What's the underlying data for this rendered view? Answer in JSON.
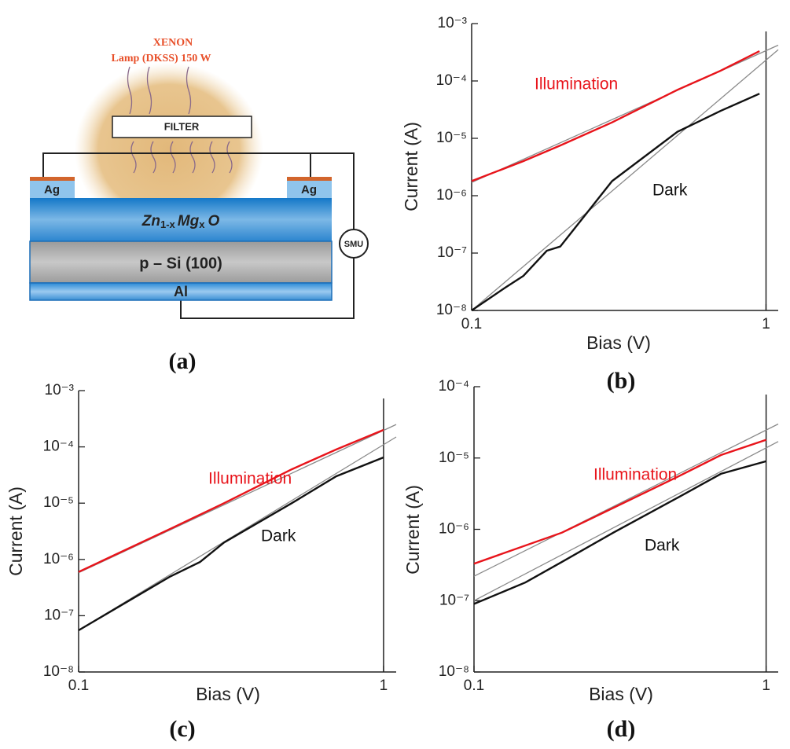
{
  "diagram": {
    "lamp": [
      "XENON",
      "Lamp (DKSS) 150 W"
    ],
    "filter": "FILTER",
    "contacts": [
      "Ag",
      "Ag"
    ],
    "layer": {
      "base": "Zn",
      "sub1": "1-x",
      "mid": "Mg",
      "sub2": "x",
      "end": "O"
    },
    "substrate": "p – Si (100)",
    "back": "Al",
    "meter": "SMU",
    "panel": "(a)"
  },
  "chart_data": [
    {
      "type": "line",
      "panel": "(b)",
      "log_x": true,
      "log_y": true,
      "x_label": "Bias (V)",
      "y_label": "Current (A)",
      "xlim": [
        0.1,
        1.1
      ],
      "ylim": [
        1e-08,
        0.001
      ],
      "xticks": [
        0.1,
        1
      ],
      "yticks": [
        {
          "value": 1e-08,
          "label": "10⁻⁸"
        },
        {
          "value": 1e-07,
          "label": "10⁻⁷"
        },
        {
          "value": 1e-06,
          "label": "10⁻⁶"
        },
        {
          "value": 1e-05,
          "label": "10⁻⁵"
        },
        {
          "value": 0.0001,
          "label": "10⁻⁴"
        },
        {
          "value": 0.001,
          "label": "10⁻³"
        }
      ],
      "series": [
        {
          "x": [
            0.1,
            1.1
          ],
          "values": [
            1.7e-06,
            0.00042
          ],
          "color": "#8a8a8a"
        },
        {
          "x": [
            0.1,
            1.1
          ],
          "values": [
            1e-08,
            0.00035
          ],
          "color": "#8a8a8a"
        },
        {
          "name": "Illumination",
          "color": "#e8141b",
          "x": [
            0.1,
            0.15,
            0.2,
            0.3,
            0.5,
            0.7,
            0.95
          ],
          "values": [
            1.8e-06,
            4e-06,
            7.5e-06,
            1.9e-05,
            7e-05,
            0.00015,
            0.00033
          ]
        },
        {
          "name": "Dark",
          "color": "#111111",
          "x": [
            0.1,
            0.13,
            0.15,
            0.18,
            0.2,
            0.3,
            0.5,
            0.7,
            0.95
          ],
          "values": [
            1e-08,
            2.5e-08,
            4e-08,
            1.1e-07,
            1.3e-07,
            1.8e-06,
            1.3e-05,
            3e-05,
            6e-05
          ]
        }
      ]
    },
    {
      "type": "line",
      "panel": "(c)",
      "log_x": true,
      "log_y": true,
      "x_label": "Bias (V)",
      "y_label": "Current (A)",
      "xlim": [
        0.1,
        1.1
      ],
      "ylim": [
        1e-08,
        0.001
      ],
      "xticks": [
        0.1,
        1
      ],
      "yticks": [
        {
          "value": 1e-08,
          "label": "10⁻⁸"
        },
        {
          "value": 1e-07,
          "label": "10⁻⁷"
        },
        {
          "value": 1e-06,
          "label": "10⁻⁶"
        },
        {
          "value": 1e-05,
          "label": "10⁻⁵"
        },
        {
          "value": 0.0001,
          "label": "10⁻⁴"
        },
        {
          "value": 0.001,
          "label": "10⁻³"
        }
      ],
      "series": [
        {
          "x": [
            0.1,
            1.1
          ],
          "values": [
            5.8e-07,
            0.00025
          ],
          "color": "#8a8a8a"
        },
        {
          "x": [
            0.1,
            1.1
          ],
          "values": [
            5.5e-08,
            0.00015
          ],
          "color": "#8a8a8a"
        },
        {
          "name": "Illumination",
          "color": "#e8141b",
          "x": [
            0.1,
            0.2,
            0.3,
            0.5,
            0.7,
            1
          ],
          "values": [
            6e-07,
            3.5e-06,
            1e-05,
            4e-05,
            9e-05,
            0.0002
          ]
        },
        {
          "name": "Dark",
          "color": "#111111",
          "x": [
            0.1,
            0.15,
            0.2,
            0.25,
            0.3,
            0.5,
            0.7,
            1
          ],
          "values": [
            5.5e-08,
            2e-07,
            5e-07,
            9e-07,
            2e-06,
            1e-05,
            3e-05,
            6.5e-05
          ]
        }
      ]
    },
    {
      "type": "line",
      "panel": "(d)",
      "log_x": true,
      "log_y": true,
      "x_label": "Bias (V)",
      "y_label": "Current (A)",
      "xlim": [
        0.1,
        1.1
      ],
      "ylim": [
        1e-08,
        0.0001
      ],
      "xticks": [
        0.1,
        1
      ],
      "yticks": [
        {
          "value": 1e-08,
          "label": "10⁻⁸"
        },
        {
          "value": 1e-07,
          "label": "10⁻⁷"
        },
        {
          "value": 1e-06,
          "label": "10⁻⁶"
        },
        {
          "value": 1e-05,
          "label": "10⁻⁵"
        },
        {
          "value": 0.0001,
          "label": "10⁻⁴"
        }
      ],
      "series": [
        {
          "x": [
            0.1,
            1.1
          ],
          "values": [
            2.2e-07,
            3e-05
          ],
          "color": "#8a8a8a"
        },
        {
          "x": [
            0.1,
            1.1
          ],
          "values": [
            1e-07,
            1.7e-05
          ],
          "color": "#8a8a8a"
        },
        {
          "name": "Illumination",
          "color": "#e8141b",
          "x": [
            0.1,
            0.2,
            0.3,
            0.5,
            0.7,
            1
          ],
          "values": [
            3.3e-07,
            9e-07,
            2e-06,
            5.5e-06,
            1.1e-05,
            1.8e-05
          ]
        },
        {
          "name": "Dark",
          "color": "#111111",
          "x": [
            0.1,
            0.15,
            0.2,
            0.3,
            0.5,
            0.7,
            1
          ],
          "values": [
            9e-08,
            1.8e-07,
            3.5e-07,
            9e-07,
            2.8e-06,
            6e-06,
            9e-06
          ]
        }
      ]
    }
  ]
}
